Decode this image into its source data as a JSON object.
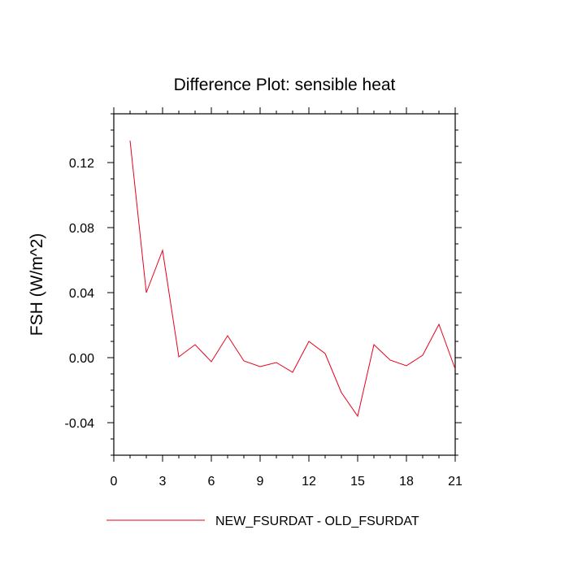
{
  "chart_data": {
    "type": "line",
    "title": "Difference Plot: sensible heat",
    "xlabel": "",
    "ylabel": "FSH  (W/m^2)",
    "xlim": [
      0,
      21
    ],
    "ylim": [
      -0.06,
      0.15
    ],
    "x_ticks": [
      0,
      3,
      6,
      9,
      12,
      15,
      18,
      21
    ],
    "x_tick_labels": [
      "0",
      "3",
      "6",
      "9",
      "12",
      "15",
      "18",
      "21"
    ],
    "y_ticks": [
      -0.04,
      0.0,
      0.04,
      0.08,
      0.12
    ],
    "y_tick_labels": [
      "-0.04",
      "0.00",
      "0.04",
      "0.08",
      "0.12"
    ],
    "grid": false,
    "legend_position": "bottom",
    "colors": {
      "series": "#e8001c",
      "axes": "#000000"
    },
    "series": [
      {
        "name": "NEW_FSURDAT - OLD_FSURDAT",
        "x": [
          1,
          2,
          3,
          4,
          5,
          6,
          7,
          8,
          9,
          10,
          11,
          12,
          13,
          14,
          15,
          16,
          17,
          18,
          19,
          20,
          21
        ],
        "values": [
          0.1335,
          0.04,
          0.066,
          0.0005,
          0.008,
          -0.0025,
          0.0135,
          -0.002,
          -0.0055,
          -0.003,
          -0.009,
          0.01,
          0.0025,
          -0.0215,
          -0.036,
          0.008,
          -0.0015,
          -0.005,
          0.0015,
          0.0205,
          -0.007
        ]
      }
    ]
  }
}
